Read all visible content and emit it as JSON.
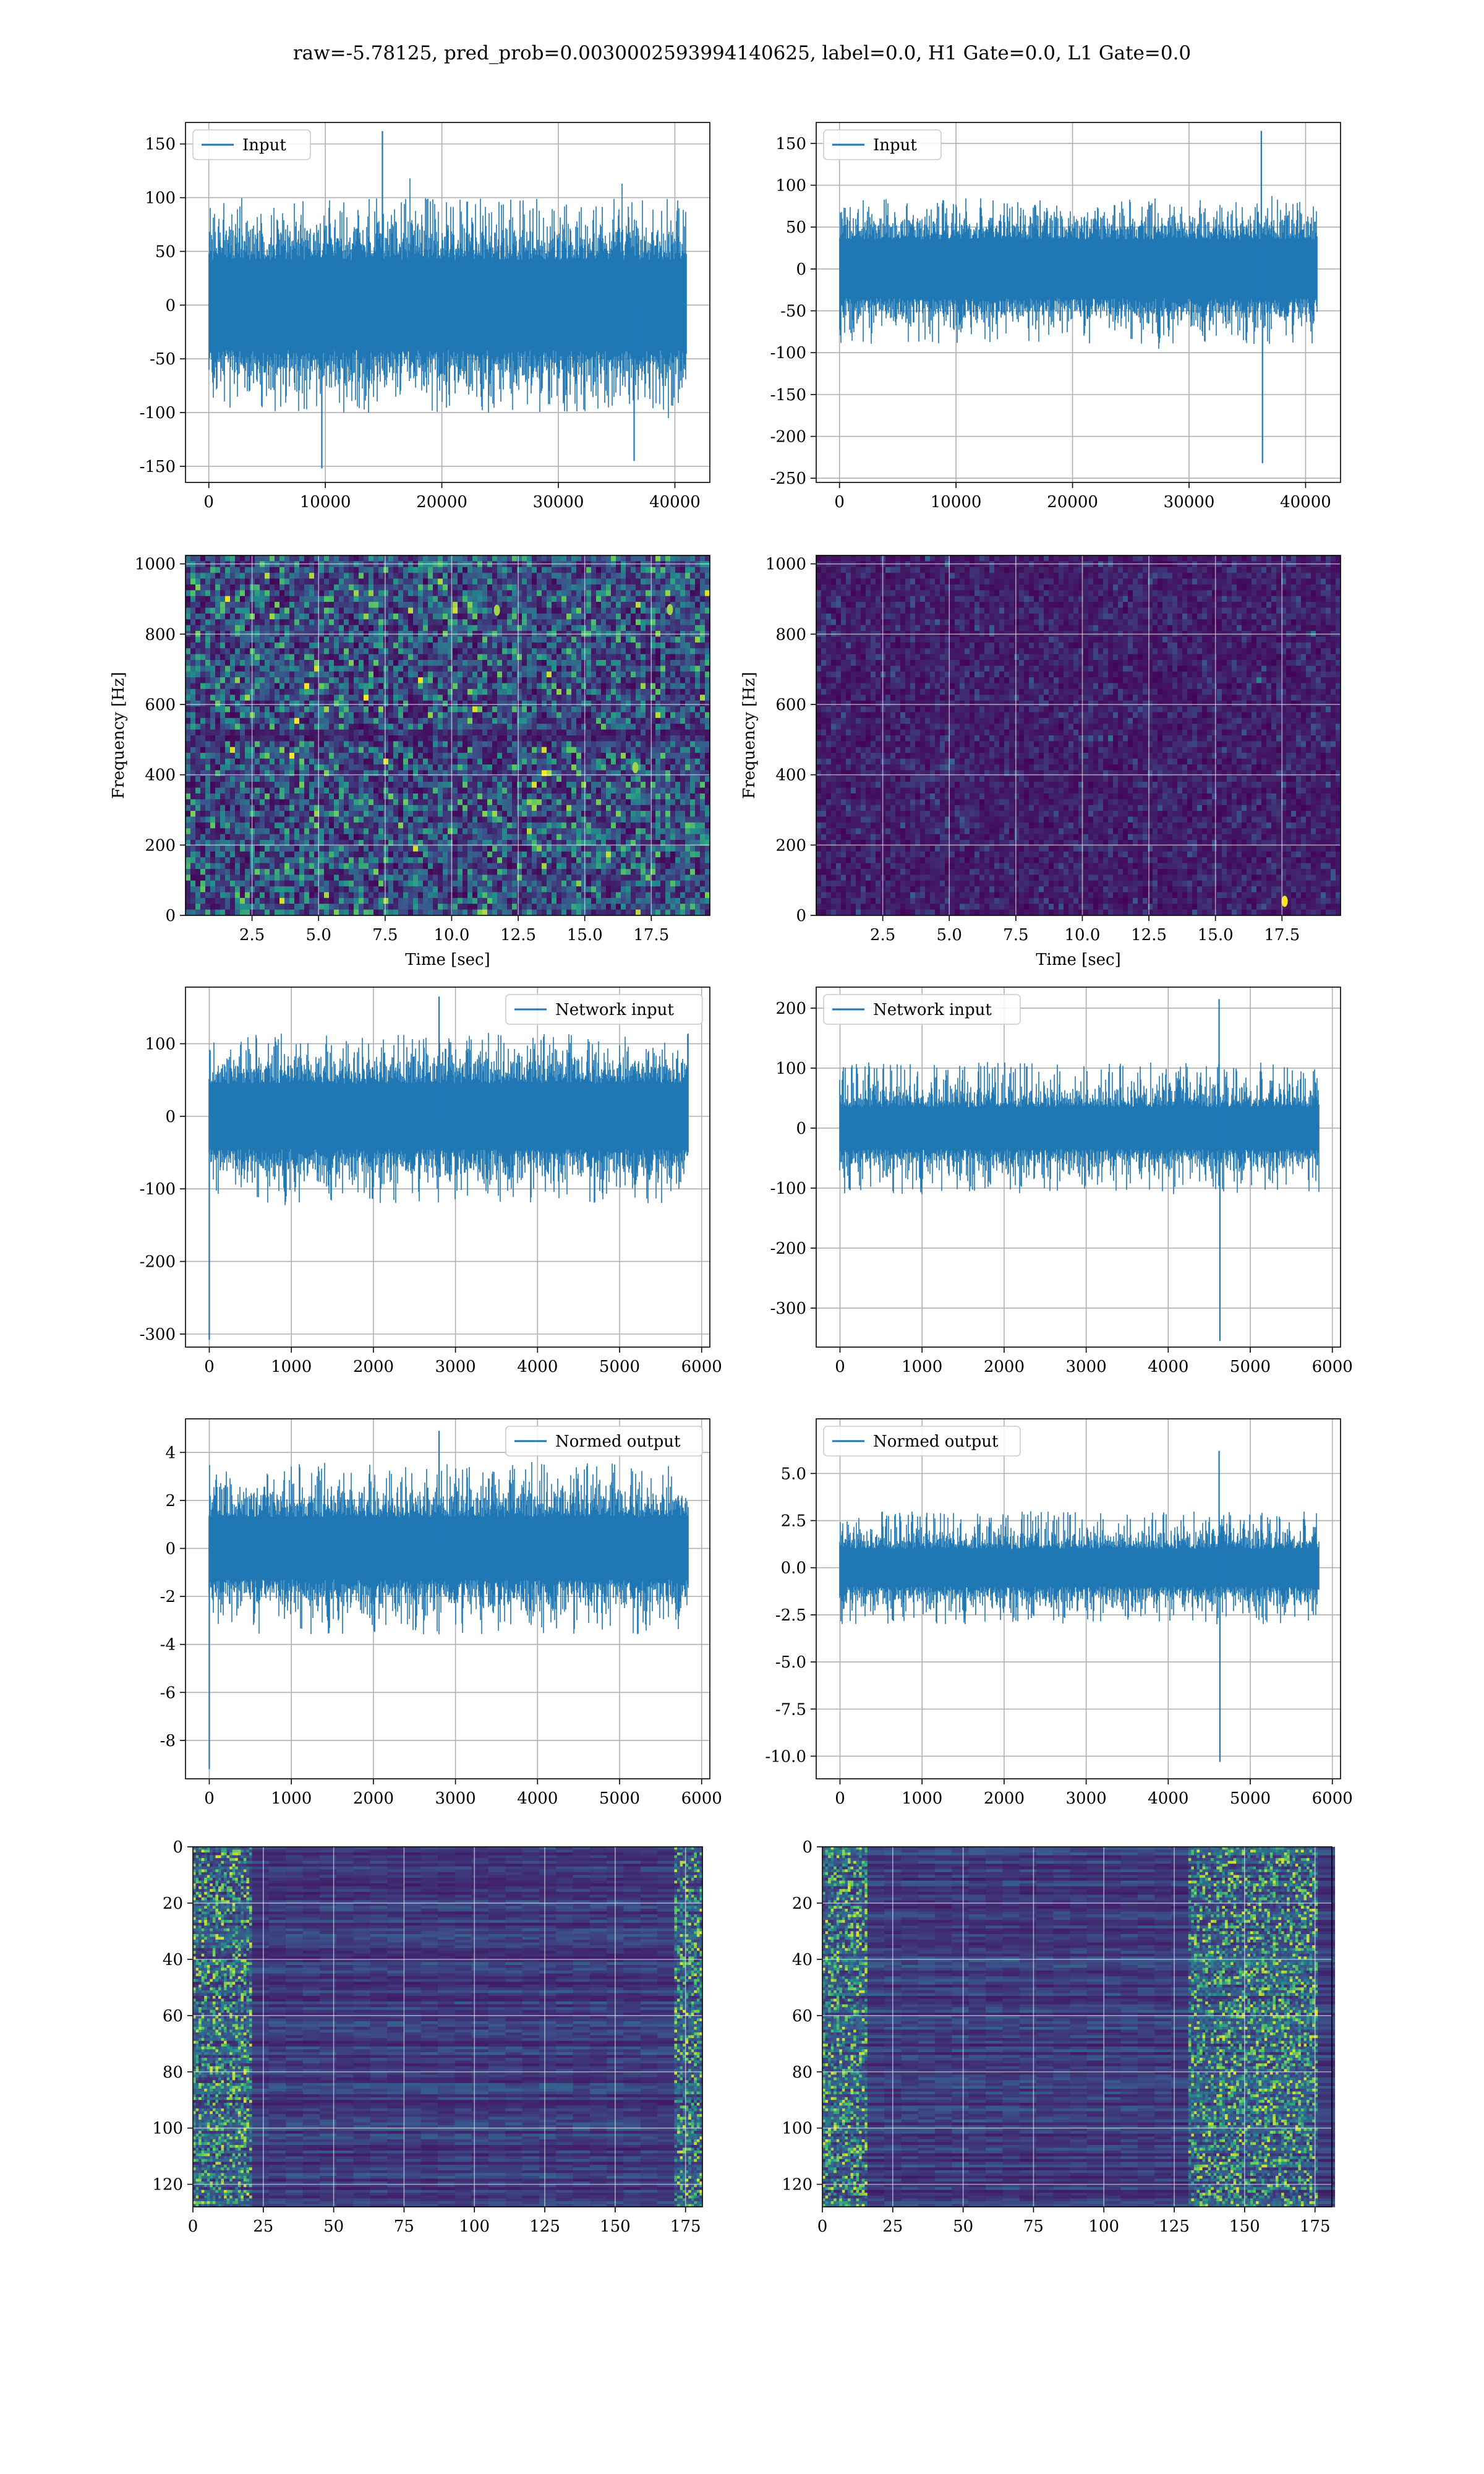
{
  "figure_title": "raw=-5.78125, pred_prob=0.0030002593994140625, label=0.0, H1 Gate=0.0, L1 Gate=0.0",
  "colors": {
    "series": "#1f77b4",
    "grid": "#b0b0b0",
    "viridis_low": "#440154",
    "viridis_mid": "#21918c",
    "viridis_high": "#fde725"
  },
  "chart_data": [
    {
      "id": "h1-input",
      "type": "line",
      "legend": "Input",
      "legend_position": "upper-left",
      "grid": true,
      "xlim": [
        -2000,
        43000
      ],
      "ylim": [
        -165,
        170
      ],
      "xticks": [
        0,
        10000,
        20000,
        30000,
        40000
      ],
      "yticks": [
        -150,
        -100,
        -50,
        0,
        50,
        100,
        150
      ],
      "trace": {
        "n": 40960,
        "band_low": -42,
        "band_high": 42,
        "tail_low": -100,
        "tail_high": 100,
        "spikes": [
          {
            "x": 14900,
            "y": 162
          },
          {
            "x": 9700,
            "y": -152
          },
          {
            "x": 36500,
            "y": -145
          }
        ]
      }
    },
    {
      "id": "l1-input",
      "type": "line",
      "legend": "Input",
      "legend_position": "upper-left",
      "grid": true,
      "xlim": [
        -2000,
        43000
      ],
      "ylim": [
        -255,
        175
      ],
      "xticks": [
        0,
        10000,
        20000,
        30000,
        40000
      ],
      "yticks": [
        -250,
        -200,
        -150,
        -100,
        -50,
        0,
        50,
        100,
        150
      ],
      "trace": {
        "n": 40960,
        "band_low": -35,
        "band_high": 35,
        "tail_low": -90,
        "tail_high": 85,
        "spikes": [
          {
            "x": 36200,
            "y": 165
          },
          {
            "x": 36300,
            "y": -232
          }
        ]
      }
    },
    {
      "id": "h1-spectrogram",
      "type": "heatmap",
      "xlabel": "Time [sec]",
      "ylabel": "Frequency [Hz]",
      "grid": true,
      "xlim": [
        0,
        19.7
      ],
      "ylim": [
        0,
        1024
      ],
      "xticks": [
        2.5,
        5.0,
        7.5,
        10.0,
        12.5,
        15.0,
        17.5
      ],
      "yticks": [
        0,
        200,
        400,
        600,
        800,
        1000
      ],
      "hotspots": [
        {
          "x": 11.7,
          "y": 868
        },
        {
          "x": 18.2,
          "y": 870
        },
        {
          "x": 16.9,
          "y": 420
        }
      ],
      "intensity": "high"
    },
    {
      "id": "l1-spectrogram",
      "type": "heatmap",
      "xlabel": "Time [sec]",
      "ylabel": "Frequency [Hz]",
      "grid": true,
      "xlim": [
        0,
        19.7
      ],
      "ylim": [
        0,
        1024
      ],
      "xticks": [
        2.5,
        5.0,
        7.5,
        10.0,
        12.5,
        15.0,
        17.5
      ],
      "yticks": [
        0,
        200,
        400,
        600,
        800,
        1000
      ],
      "hotspots": [
        {
          "x": 17.6,
          "y": 40
        }
      ],
      "intensity": "low"
    },
    {
      "id": "h1-network-input",
      "type": "line",
      "legend": "Network input",
      "legend_position": "upper-right",
      "grid": true,
      "xlim": [
        -290,
        6100
      ],
      "ylim": [
        -318,
        178
      ],
      "xticks": [
        0,
        1000,
        2000,
        3000,
        4000,
        5000,
        6000
      ],
      "yticks": [
        -300,
        -200,
        -100,
        0,
        100
      ],
      "trace": {
        "n": 5840,
        "band_low": -45,
        "band_high": 45,
        "tail_low": -120,
        "tail_high": 115,
        "spikes": [
          {
            "x": 2800,
            "y": 165
          },
          {
            "x": 0,
            "y": -308
          }
        ]
      }
    },
    {
      "id": "l1-network-input",
      "type": "line",
      "legend": "Network input",
      "legend_position": "upper-left",
      "grid": true,
      "xlim": [
        -290,
        6100
      ],
      "ylim": [
        -365,
        235
      ],
      "xticks": [
        0,
        1000,
        2000,
        3000,
        4000,
        5000,
        6000
      ],
      "yticks": [
        -300,
        -200,
        -100,
        0,
        100,
        200
      ],
      "trace": {
        "n": 5840,
        "band_low": -35,
        "band_high": 35,
        "tail_low": -110,
        "tail_high": 110,
        "spikes": [
          {
            "x": 4620,
            "y": 215
          },
          {
            "x": 4630,
            "y": -355
          }
        ]
      }
    },
    {
      "id": "h1-normed-output",
      "type": "line",
      "legend": "Normed output",
      "legend_position": "upper-right",
      "grid": true,
      "xlim": [
        -290,
        6100
      ],
      "ylim": [
        -9.6,
        5.4
      ],
      "xticks": [
        0,
        1000,
        2000,
        3000,
        4000,
        5000,
        6000
      ],
      "yticks": [
        -8,
        -6,
        -4,
        -2,
        0,
        2,
        4
      ],
      "trace": {
        "n": 5840,
        "band_low": -1.3,
        "band_high": 1.3,
        "tail_low": -3.6,
        "tail_high": 3.6,
        "spikes": [
          {
            "x": 2800,
            "y": 4.9
          },
          {
            "x": 0,
            "y": -9.2
          }
        ]
      }
    },
    {
      "id": "l1-normed-output",
      "type": "line",
      "legend": "Normed output",
      "legend_position": "upper-left",
      "grid": true,
      "xlim": [
        -290,
        6100
      ],
      "ylim": [
        -11.2,
        7.9
      ],
      "xticks": [
        0,
        1000,
        2000,
        3000,
        4000,
        5000,
        6000
      ],
      "yticks": [
        -10.0,
        -7.5,
        -5.0,
        -2.5,
        0.0,
        2.5,
        5.0
      ],
      "trace": {
        "n": 5840,
        "band_low": -1.0,
        "band_high": 1.0,
        "tail_low": -3.0,
        "tail_high": 3.0,
        "spikes": [
          {
            "x": 4620,
            "y": 6.2
          },
          {
            "x": 4630,
            "y": -10.3
          }
        ]
      }
    },
    {
      "id": "h1-feature-map",
      "type": "heatmap",
      "grid": true,
      "xlim": [
        0,
        181
      ],
      "ylim": [
        128,
        0
      ],
      "xticks": [
        0,
        25,
        50,
        75,
        100,
        125,
        150,
        175
      ],
      "yticks": [
        0,
        20,
        40,
        60,
        80,
        100,
        120
      ],
      "bright_columns": [
        0,
        1,
        2,
        3,
        4,
        5,
        6,
        7,
        8,
        9,
        10,
        11,
        12,
        13,
        14,
        15,
        16,
        17,
        18,
        19,
        20,
        168,
        169,
        170,
        171,
        172,
        173,
        174,
        175,
        176,
        177,
        178,
        179,
        180
      ]
    },
    {
      "id": "l1-feature-map",
      "type": "heatmap",
      "grid": true,
      "xlim": [
        0,
        181
      ],
      "ylim": [
        128,
        0
      ],
      "xticks": [
        0,
        25,
        50,
        75,
        100,
        125,
        150,
        175
      ],
      "yticks": [
        0,
        20,
        40,
        60,
        80,
        100,
        120
      ],
      "bright_columns": [
        0,
        1,
        2,
        3,
        4,
        5,
        6,
        7,
        8,
        9,
        10,
        11,
        12,
        13,
        14,
        15,
        125,
        126,
        127,
        128,
        129,
        130,
        131,
        132,
        133,
        134,
        135,
        136,
        137,
        138,
        139,
        140,
        141,
        142,
        143,
        144,
        145,
        146,
        147,
        148,
        149,
        150,
        151,
        152,
        153,
        154,
        155,
        156,
        157,
        158,
        159,
        160,
        161,
        162,
        163,
        164,
        165,
        166,
        167,
        168,
        169,
        170,
        171,
        172,
        173,
        174,
        175
      ]
    }
  ]
}
